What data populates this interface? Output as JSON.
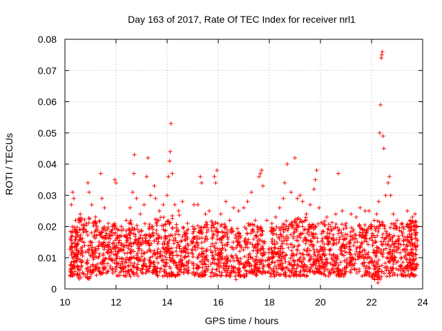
{
  "chart_data": {
    "type": "scatter",
    "title": "Day 163 of 2017, Rate Of TEC Index for receiver nrl1",
    "xlabel": "GPS time / hours",
    "ylabel": "ROTI / TECUs",
    "xlim": [
      10,
      24
    ],
    "ylim": [
      0,
      0.08
    ],
    "xticks": [
      10,
      12,
      14,
      16,
      18,
      20,
      22,
      24
    ],
    "xtick_labels": [
      "10",
      "12",
      "14",
      "16",
      "18",
      "20",
      "22",
      "24"
    ],
    "yticks": [
      0,
      0.01,
      0.02,
      0.03,
      0.04,
      0.05,
      0.06,
      0.07,
      0.08
    ],
    "ytick_labels": [
      "0",
      "0.01",
      "0.02",
      "0.03",
      "0.04",
      "0.05",
      "0.06",
      "0.07",
      "0.08"
    ],
    "grid": true,
    "marker": "plus",
    "series_color": "#ff0000",
    "series": [
      {
        "name": "ROTI",
        "points": [
          [
            10.25,
            0.027
          ],
          [
            10.3,
            0.031
          ],
          [
            10.35,
            0.029
          ],
          [
            10.42,
            0.022
          ],
          [
            10.5,
            0.018
          ],
          [
            10.6,
            0.024
          ],
          [
            10.7,
            0.019
          ],
          [
            10.9,
            0.034
          ],
          [
            10.95,
            0.031
          ],
          [
            11.05,
            0.027
          ],
          [
            11.2,
            0.023
          ],
          [
            11.4,
            0.037
          ],
          [
            11.45,
            0.029
          ],
          [
            11.55,
            0.026
          ],
          [
            11.7,
            0.021
          ],
          [
            11.85,
            0.02
          ],
          [
            11.95,
            0.035
          ],
          [
            12.0,
            0.034
          ],
          [
            12.2,
            0.02
          ],
          [
            12.4,
            0.022
          ],
          [
            12.55,
            0.026
          ],
          [
            12.65,
            0.031
          ],
          [
            12.7,
            0.037
          ],
          [
            12.72,
            0.043
          ],
          [
            12.8,
            0.029
          ],
          [
            12.95,
            0.024
          ],
          [
            13.1,
            0.027
          ],
          [
            13.2,
            0.036
          ],
          [
            13.25,
            0.042
          ],
          [
            13.35,
            0.03
          ],
          [
            13.5,
            0.033
          ],
          [
            13.55,
            0.029
          ],
          [
            13.7,
            0.025
          ],
          [
            13.85,
            0.027
          ],
          [
            14.0,
            0.03
          ],
          [
            14.05,
            0.036
          ],
          [
            14.1,
            0.041
          ],
          [
            14.12,
            0.044
          ],
          [
            14.15,
            0.053
          ],
          [
            14.2,
            0.037
          ],
          [
            14.3,
            0.027
          ],
          [
            14.45,
            0.025
          ],
          [
            14.6,
            0.028
          ],
          [
            14.8,
            0.021
          ],
          [
            15.05,
            0.027
          ],
          [
            15.2,
            0.027
          ],
          [
            15.3,
            0.036
          ],
          [
            15.35,
            0.034
          ],
          [
            15.5,
            0.024
          ],
          [
            15.65,
            0.025
          ],
          [
            15.85,
            0.036
          ],
          [
            15.9,
            0.034
          ],
          [
            15.95,
            0.038
          ],
          [
            16.1,
            0.024
          ],
          [
            16.3,
            0.028
          ],
          [
            16.45,
            0.022
          ],
          [
            16.6,
            0.026
          ],
          [
            16.8,
            0.025
          ],
          [
            17.0,
            0.026
          ],
          [
            17.15,
            0.028
          ],
          [
            17.3,
            0.031
          ],
          [
            17.45,
            0.022
          ],
          [
            17.6,
            0.036
          ],
          [
            17.65,
            0.037
          ],
          [
            17.7,
            0.038
          ],
          [
            17.75,
            0.033
          ],
          [
            17.9,
            0.022
          ],
          [
            18.1,
            0.021
          ],
          [
            18.25,
            0.023
          ],
          [
            18.4,
            0.026
          ],
          [
            18.55,
            0.029
          ],
          [
            18.6,
            0.034
          ],
          [
            18.7,
            0.04
          ],
          [
            18.85,
            0.031
          ],
          [
            19.0,
            0.042
          ],
          [
            19.1,
            0.029
          ],
          [
            19.2,
            0.03
          ],
          [
            19.3,
            0.028
          ],
          [
            19.45,
            0.024
          ],
          [
            19.6,
            0.027
          ],
          [
            19.75,
            0.032
          ],
          [
            19.8,
            0.035
          ],
          [
            19.85,
            0.038
          ],
          [
            19.95,
            0.026
          ],
          [
            20.1,
            0.021
          ],
          [
            20.25,
            0.023
          ],
          [
            20.4,
            0.02
          ],
          [
            20.6,
            0.024
          ],
          [
            20.7,
            0.037
          ],
          [
            20.85,
            0.025
          ],
          [
            21.0,
            0.021
          ],
          [
            21.2,
            0.024
          ],
          [
            21.4,
            0.023
          ],
          [
            21.55,
            0.026
          ],
          [
            21.75,
            0.025
          ],
          [
            21.9,
            0.025
          ],
          [
            22.0,
            0.02
          ],
          [
            22.1,
            0.022
          ],
          [
            22.2,
            0.024
          ],
          [
            22.28,
            0.028
          ],
          [
            22.32,
            0.05
          ],
          [
            22.35,
            0.059
          ],
          [
            22.38,
            0.074
          ],
          [
            22.4,
            0.075
          ],
          [
            22.42,
            0.076
          ],
          [
            22.45,
            0.049
          ],
          [
            22.48,
            0.045
          ],
          [
            22.55,
            0.03
          ],
          [
            22.65,
            0.034
          ],
          [
            22.7,
            0.036
          ],
          [
            22.75,
            0.03
          ],
          [
            22.85,
            0.024
          ],
          [
            23.0,
            0.022
          ],
          [
            23.2,
            0.021
          ],
          [
            23.4,
            0.025
          ],
          [
            23.5,
            0.02
          ],
          [
            23.55,
            0.021
          ],
          [
            23.6,
            0.023
          ],
          [
            23.7,
            0.024
          ],
          [
            23.75,
            0.02
          ],
          [
            22.25,
            0.002
          ],
          [
            22.3,
            0.004
          ],
          [
            16.7,
            0.003
          ],
          [
            18.2,
            0.004
          ],
          [
            11.0,
            0.004
          ]
        ],
        "band": {
          "segments": [
            [
              10.2,
              10.5,
              0.004,
              0.02
            ],
            [
              10.5,
              11.0,
              0.003,
              0.023
            ],
            [
              11.0,
              11.5,
              0.004,
              0.022
            ],
            [
              11.5,
              12.0,
              0.005,
              0.021
            ],
            [
              12.0,
              12.5,
              0.004,
              0.02
            ],
            [
              12.5,
              13.0,
              0.004,
              0.022
            ],
            [
              13.0,
              13.5,
              0.005,
              0.021
            ],
            [
              13.5,
              14.0,
              0.004,
              0.023
            ],
            [
              14.0,
              14.5,
              0.004,
              0.024
            ],
            [
              14.5,
              15.0,
              0.005,
              0.02
            ],
            [
              15.0,
              15.5,
              0.004,
              0.021
            ],
            [
              15.5,
              16.0,
              0.004,
              0.022
            ],
            [
              16.0,
              16.5,
              0.004,
              0.021
            ],
            [
              16.5,
              17.0,
              0.004,
              0.02
            ],
            [
              17.0,
              17.5,
              0.004,
              0.021
            ],
            [
              17.5,
              18.0,
              0.005,
              0.02
            ],
            [
              18.0,
              18.5,
              0.004,
              0.02
            ],
            [
              18.5,
              19.0,
              0.004,
              0.022
            ],
            [
              19.0,
              19.5,
              0.004,
              0.023
            ],
            [
              19.5,
              20.0,
              0.005,
              0.021
            ],
            [
              20.0,
              20.5,
              0.004,
              0.022
            ],
            [
              20.5,
              21.0,
              0.004,
              0.021
            ],
            [
              21.0,
              21.5,
              0.005,
              0.02
            ],
            [
              21.5,
              22.0,
              0.004,
              0.021
            ],
            [
              22.0,
              22.5,
              0.003,
              0.022
            ],
            [
              22.5,
              23.0,
              0.004,
              0.021
            ],
            [
              23.0,
              23.5,
              0.004,
              0.021
            ],
            [
              23.5,
              23.8,
              0.004,
              0.022
            ]
          ],
          "count": 2600,
          "gaps": [
            [
              14.85,
              14.95
            ],
            [
              15.62,
              15.7
            ],
            [
              16.9,
              16.98
            ],
            [
              17.85,
              17.92
            ],
            [
              21.05,
              21.12
            ]
          ]
        }
      }
    ]
  }
}
